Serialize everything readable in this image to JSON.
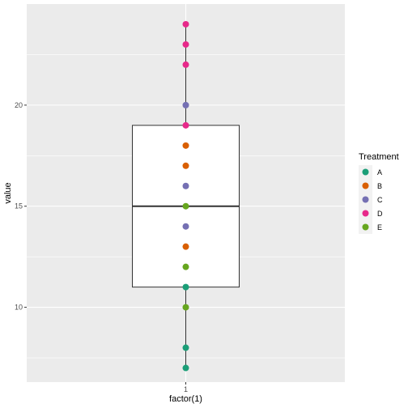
{
  "chart_data": {
    "type": "scatter",
    "overlay": "boxplot",
    "title": "",
    "xlabel": "factor(1)",
    "ylabel": "value",
    "x_categories": [
      "1"
    ],
    "ylim": [
      6.3,
      25.0
    ],
    "y_ticks": [
      10,
      15,
      20
    ],
    "grid": true,
    "legend_placement": "right",
    "legend_title": "Treatment",
    "box": {
      "min": 7,
      "q1": 11,
      "median": 15,
      "q3": 19,
      "max": 24
    },
    "series": [
      {
        "name": "A",
        "color": "#1B9E77",
        "values": [
          7,
          8,
          11
        ]
      },
      {
        "name": "B",
        "color": "#D95F02",
        "values": [
          13,
          17,
          18
        ]
      },
      {
        "name": "C",
        "color": "#7570B3",
        "values": [
          14,
          16,
          20
        ]
      },
      {
        "name": "D",
        "color": "#E7298A",
        "values": [
          19,
          22,
          23,
          24
        ]
      },
      {
        "name": "E",
        "color": "#66A61E",
        "values": [
          10,
          12,
          15
        ]
      }
    ]
  }
}
